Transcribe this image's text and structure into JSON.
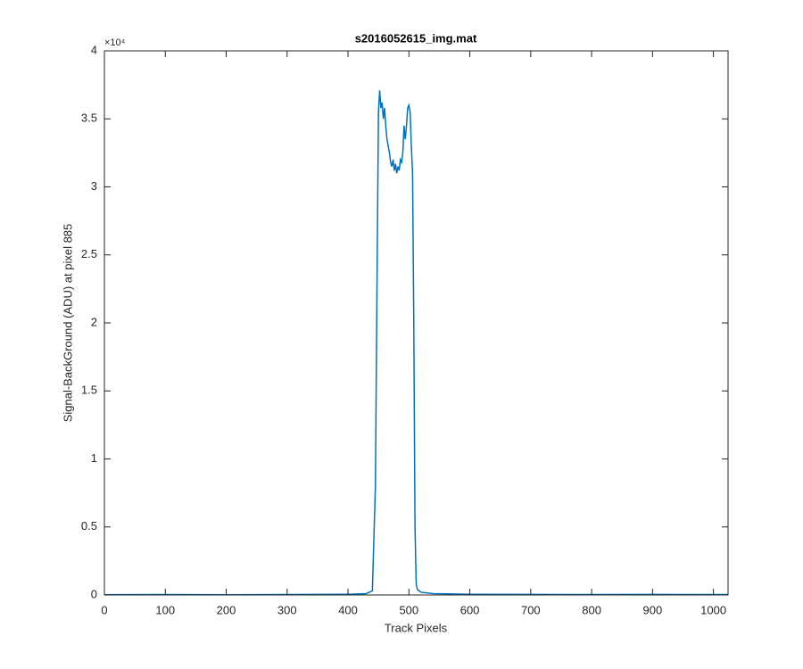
{
  "chart_data": {
    "type": "line",
    "title": "s2016052615_img.mat",
    "x_label": "Track Pixels",
    "y_label": "Signal-BackGround (ADU) at pixel 885",
    "y_multiplier": "×10⁴",
    "x": [
      0,
      100,
      200,
      300,
      400,
      430,
      440,
      445,
      448,
      450,
      452,
      454,
      456,
      458,
      460,
      462,
      464,
      466,
      468,
      470,
      472,
      474,
      476,
      478,
      480,
      482,
      484,
      486,
      488,
      490,
      492,
      494,
      496,
      498,
      500,
      502,
      504,
      506,
      508,
      510,
      512,
      514,
      520,
      540,
      600,
      700,
      800,
      900,
      1000,
      1024
    ],
    "series": [
      {
        "color": "#0072bd",
        "values": [
          0.002,
          0.003,
          0.002,
          0.003,
          0.005,
          0.01,
          0.03,
          0.8,
          2.5,
          3.55,
          3.71,
          3.58,
          3.62,
          3.5,
          3.58,
          3.45,
          3.35,
          3.3,
          3.25,
          3.18,
          3.15,
          3.2,
          3.12,
          3.17,
          3.1,
          3.15,
          3.12,
          3.2,
          3.18,
          3.25,
          3.45,
          3.35,
          3.45,
          3.58,
          3.6,
          3.55,
          3.3,
          3.1,
          2.0,
          0.5,
          0.08,
          0.04,
          0.02,
          0.01,
          0.005,
          0.004,
          0.003,
          0.004,
          0.003,
          0.003
        ]
      }
    ],
    "xlim": [
      0,
      1024
    ],
    "xticks": [
      0,
      100,
      200,
      300,
      400,
      500,
      600,
      700,
      800,
      900,
      1000
    ],
    "ylim": [
      0,
      4
    ],
    "yticks": [
      0,
      0.5,
      1,
      1.5,
      2,
      2.5,
      3,
      3.5,
      4
    ]
  }
}
